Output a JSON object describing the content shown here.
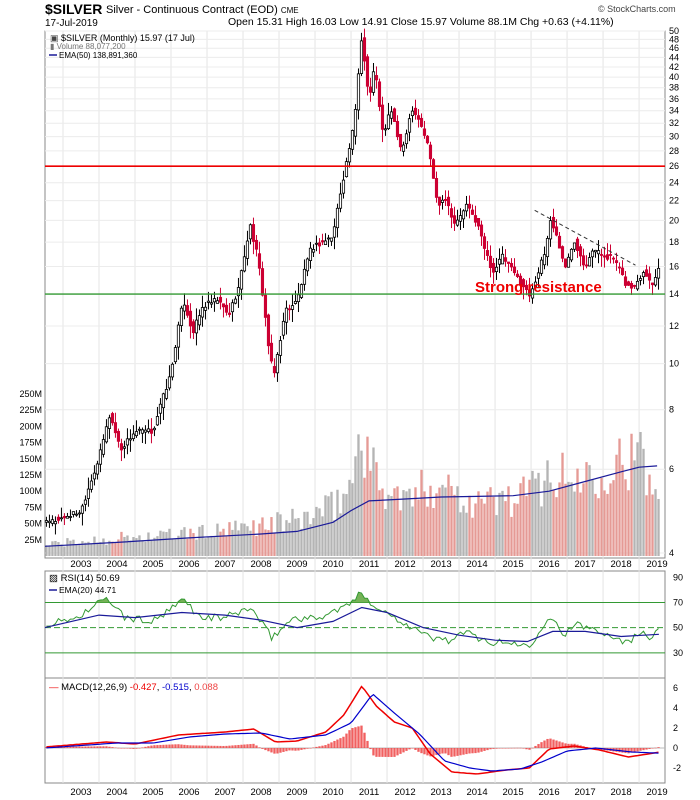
{
  "header": {
    "symbol": "$SILVER",
    "name": "Silver - Continuous Contract (EOD)",
    "exchange": "CME",
    "date": "17-Jul-2019",
    "ohlc": "Open 15.31  High 16.03  Low 14.91  Close 15.97  Volume 88.1M  Chg +0.63 (+4.11%)",
    "brand": "© StockCharts.com"
  },
  "legend": {
    "price": "$SILVER (Monthly) 15.97 (17 Jul)",
    "volume": "Volume 88,077,200",
    "ema": "EMA(50) 138,891,360",
    "rsi": "RSI(14) 50.69",
    "rsi_ema": "EMA(20) 44.71",
    "macd_prefix": "MACD(12,26,9)",
    "macd_v1": "-0.427",
    "macd_v2": "-0.515",
    "macd_v3": "0.088"
  },
  "annotation": "Strong resistance",
  "colors": {
    "up": "#000000",
    "down": "#cc0033",
    "ema": "#1a1a99",
    "resistance": "#ee0000",
    "support": "#339933",
    "rsi": "#339933",
    "macd": "#ee0000",
    "signal": "#0000cc",
    "hist": "#ee4444",
    "vol_up": "#b4b4b4",
    "vol_down": "#e59a95"
  },
  "chart_data": [
    {
      "type": "candlestick",
      "title": "$SILVER (Monthly)",
      "x": [
        "2003",
        "2004",
        "2005",
        "2006",
        "2007",
        "2008",
        "2009",
        "2010",
        "2011",
        "2012",
        "2013",
        "2014",
        "2015",
        "2016",
        "2017",
        "2018",
        "2019"
      ],
      "y_ticks": [
        4,
        6,
        8,
        10,
        12,
        14,
        16,
        18,
        20,
        22,
        24,
        26,
        28,
        30,
        32,
        34,
        36,
        38,
        40,
        42,
        44,
        46,
        48,
        50
      ],
      "ylim": [
        4,
        50
      ],
      "price_path": [
        [
          2002.5,
          4.6
        ],
        [
          2003.5,
          4.9
        ],
        [
          2004.0,
          6.3
        ],
        [
          2004.3,
          7.8
        ],
        [
          2004.6,
          6.6
        ],
        [
          2005.0,
          7.2
        ],
        [
          2005.5,
          7.2
        ],
        [
          2006.0,
          9.5
        ],
        [
          2006.35,
          13.6
        ],
        [
          2006.6,
          11.6
        ],
        [
          2006.9,
          13.2
        ],
        [
          2007.3,
          13.6
        ],
        [
          2007.6,
          12.6
        ],
        [
          2007.9,
          14.6
        ],
        [
          2008.2,
          19.5
        ],
        [
          2008.4,
          16.8
        ],
        [
          2008.7,
          11.0
        ],
        [
          2008.85,
          9.3
        ],
        [
          2009.2,
          13.0
        ],
        [
          2009.5,
          13.5
        ],
        [
          2009.9,
          17.5
        ],
        [
          2010.5,
          18.5
        ],
        [
          2010.9,
          27.0
        ],
        [
          2011.1,
          32.0
        ],
        [
          2011.3,
          48.6
        ],
        [
          2011.5,
          35.5
        ],
        [
          2011.65,
          42.0
        ],
        [
          2011.9,
          29.5
        ],
        [
          2012.1,
          34.6
        ],
        [
          2012.4,
          27.5
        ],
        [
          2012.7,
          34.5
        ],
        [
          2012.9,
          32.5
        ],
        [
          2013.15,
          28.5
        ],
        [
          2013.4,
          21.5
        ],
        [
          2013.6,
          22.5
        ],
        [
          2013.9,
          19.5
        ],
        [
          2014.2,
          21.5
        ],
        [
          2014.5,
          19.8
        ],
        [
          2014.75,
          17.0
        ],
        [
          2014.95,
          15.6
        ],
        [
          2015.2,
          16.8
        ],
        [
          2015.5,
          15.6
        ],
        [
          2015.8,
          14.5
        ],
        [
          2015.95,
          13.9
        ],
        [
          2016.2,
          15.5
        ],
        [
          2016.4,
          17.2
        ],
        [
          2016.55,
          20.2
        ],
        [
          2016.85,
          17.0
        ],
        [
          2016.95,
          15.8
        ],
        [
          2017.2,
          18.2
        ],
        [
          2017.5,
          16.0
        ],
        [
          2017.7,
          17.4
        ],
        [
          2017.95,
          17.0
        ],
        [
          2018.3,
          16.6
        ],
        [
          2018.65,
          14.6
        ],
        [
          2018.85,
          14.4
        ],
        [
          2019.15,
          15.8
        ],
        [
          2019.35,
          14.6
        ],
        [
          2019.55,
          15.97
        ]
      ],
      "resistance_level": 26,
      "support_level": 14,
      "trendline": [
        [
          2016.1,
          21.0
        ],
        [
          2018.9,
          16.1
        ]
      ]
    },
    {
      "type": "bar",
      "title": "Volume",
      "y_ticks_label": [
        "25M",
        "50M",
        "75M",
        "100M",
        "125M",
        "150M",
        "175M",
        "200M",
        "225M",
        "250M"
      ],
      "y_ticks": [
        25,
        50,
        75,
        100,
        125,
        150,
        175,
        200,
        225,
        250
      ],
      "volume_path_millions": [
        [
          2002.5,
          18
        ],
        [
          2003.5,
          22
        ],
        [
          2004.5,
          28
        ],
        [
          2005.5,
          30
        ],
        [
          2006.5,
          35
        ],
        [
          2007.5,
          38
        ],
        [
          2008.5,
          48
        ],
        [
          2009.5,
          55
        ],
        [
          2010.5,
          75
        ],
        [
          2011.0,
          110
        ],
        [
          2011.3,
          200
        ],
        [
          2011.6,
          130
        ],
        [
          2012.0,
          100
        ],
        [
          2012.5,
          85
        ],
        [
          2013.0,
          100
        ],
        [
          2013.5,
          120
        ],
        [
          2014.0,
          95
        ],
        [
          2014.5,
          85
        ],
        [
          2015.0,
          85
        ],
        [
          2015.5,
          90
        ],
        [
          2016.0,
          100
        ],
        [
          2016.5,
          130
        ],
        [
          2017.0,
          115
        ],
        [
          2017.5,
          125
        ],
        [
          2018.0,
          140
        ],
        [
          2018.5,
          150
        ],
        [
          2019.0,
          150
        ],
        [
          2019.5,
          88
        ]
      ],
      "ema_path_millions": [
        [
          2002.5,
          15
        ],
        [
          2004.5,
          21
        ],
        [
          2006.5,
          28
        ],
        [
          2008.5,
          34
        ],
        [
          2009.5,
          38
        ],
        [
          2010.5,
          52
        ],
        [
          2011.0,
          70
        ],
        [
          2011.5,
          85
        ],
        [
          2012.5,
          88
        ],
        [
          2013.5,
          91
        ],
        [
          2014.5,
          92
        ],
        [
          2015.5,
          93
        ],
        [
          2016.5,
          100
        ],
        [
          2017.5,
          115
        ],
        [
          2018.5,
          130
        ],
        [
          2019.0,
          137
        ],
        [
          2019.5,
          139
        ]
      ]
    },
    {
      "type": "line",
      "title": "RSI(14)",
      "y_ticks": [
        30,
        50,
        70,
        90
      ],
      "ylim": [
        10,
        95
      ],
      "levels": [
        30,
        50,
        70
      ],
      "rsi_path": [
        [
          2002.5,
          52
        ],
        [
          2003.4,
          58
        ],
        [
          2004.0,
          70
        ],
        [
          2004.3,
          72
        ],
        [
          2004.7,
          58
        ],
        [
          2005.5,
          55
        ],
        [
          2006.0,
          64
        ],
        [
          2006.35,
          73
        ],
        [
          2006.8,
          58
        ],
        [
          2007.5,
          58
        ],
        [
          2008.2,
          66
        ],
        [
          2008.8,
          42
        ],
        [
          2009.4,
          58
        ],
        [
          2010.0,
          57
        ],
        [
          2010.8,
          66
        ],
        [
          2011.1,
          72
        ],
        [
          2011.3,
          78
        ],
        [
          2011.7,
          66
        ],
        [
          2012.1,
          60
        ],
        [
          2012.6,
          52
        ],
        [
          2013.2,
          42
        ],
        [
          2013.7,
          40
        ],
        [
          2014.2,
          46
        ],
        [
          2014.9,
          38
        ],
        [
          2015.5,
          38
        ],
        [
          2015.95,
          35
        ],
        [
          2016.5,
          60
        ],
        [
          2016.9,
          45
        ],
        [
          2017.3,
          52
        ],
        [
          2017.9,
          48
        ],
        [
          2018.7,
          38
        ],
        [
          2019.1,
          48
        ],
        [
          2019.35,
          42
        ],
        [
          2019.55,
          50.69
        ]
      ],
      "ema_path": [
        [
          2002.5,
          50
        ],
        [
          2004.0,
          60
        ],
        [
          2005.0,
          58
        ],
        [
          2006.3,
          62
        ],
        [
          2007.5,
          60
        ],
        [
          2008.5,
          56
        ],
        [
          2009.5,
          50
        ],
        [
          2010.5,
          55
        ],
        [
          2011.3,
          66
        ],
        [
          2012.0,
          62
        ],
        [
          2013.0,
          50
        ],
        [
          2014.0,
          44
        ],
        [
          2015.0,
          40
        ],
        [
          2015.9,
          39
        ],
        [
          2016.6,
          47
        ],
        [
          2017.5,
          47
        ],
        [
          2018.5,
          43
        ],
        [
          2019.55,
          44.71
        ]
      ]
    },
    {
      "type": "line",
      "title": "MACD(12,26,9)",
      "y_ticks": [
        -2,
        0,
        2,
        4,
        6
      ],
      "ylim": [
        -3.5,
        7
      ],
      "macd_path": [
        [
          2002.5,
          0.1
        ],
        [
          2004.2,
          0.6
        ],
        [
          2005.0,
          0.4
        ],
        [
          2006.2,
          1.3
        ],
        [
          2007.5,
          1.6
        ],
        [
          2008.3,
          1.9
        ],
        [
          2008.9,
          0.6
        ],
        [
          2009.5,
          0.7
        ],
        [
          2010.3,
          1.6
        ],
        [
          2010.8,
          3.3
        ],
        [
          2011.3,
          6.2
        ],
        [
          2011.7,
          4.2
        ],
        [
          2012.2,
          2.6
        ],
        [
          2012.7,
          2.0
        ],
        [
          2013.2,
          -0.6
        ],
        [
          2013.8,
          -2.4
        ],
        [
          2014.5,
          -2.6
        ],
        [
          2015.3,
          -2.2
        ],
        [
          2015.95,
          -2.0
        ],
        [
          2016.5,
          -0.1
        ],
        [
          2017.2,
          0.2
        ],
        [
          2017.9,
          -0.2
        ],
        [
          2018.7,
          -0.9
        ],
        [
          2019.55,
          -0.427
        ]
      ],
      "signal_path": [
        [
          2002.5,
          0.0
        ],
        [
          2004.5,
          0.5
        ],
        [
          2005.5,
          0.5
        ],
        [
          2006.5,
          1.1
        ],
        [
          2007.5,
          1.4
        ],
        [
          2008.5,
          1.5
        ],
        [
          2009.3,
          0.9
        ],
        [
          2010.3,
          1.3
        ],
        [
          2011.0,
          2.5
        ],
        [
          2011.6,
          5.4
        ],
        [
          2012.2,
          3.5
        ],
        [
          2012.9,
          1.4
        ],
        [
          2013.6,
          -1.3
        ],
        [
          2014.3,
          -2.0
        ],
        [
          2014.9,
          -2.3
        ],
        [
          2015.7,
          -2.1
        ],
        [
          2016.3,
          -1.4
        ],
        [
          2017.0,
          -0.3
        ],
        [
          2017.8,
          0.0
        ],
        [
          2018.8,
          -0.4
        ],
        [
          2019.55,
          -0.515
        ]
      ],
      "hist_last": 0.088
    }
  ]
}
